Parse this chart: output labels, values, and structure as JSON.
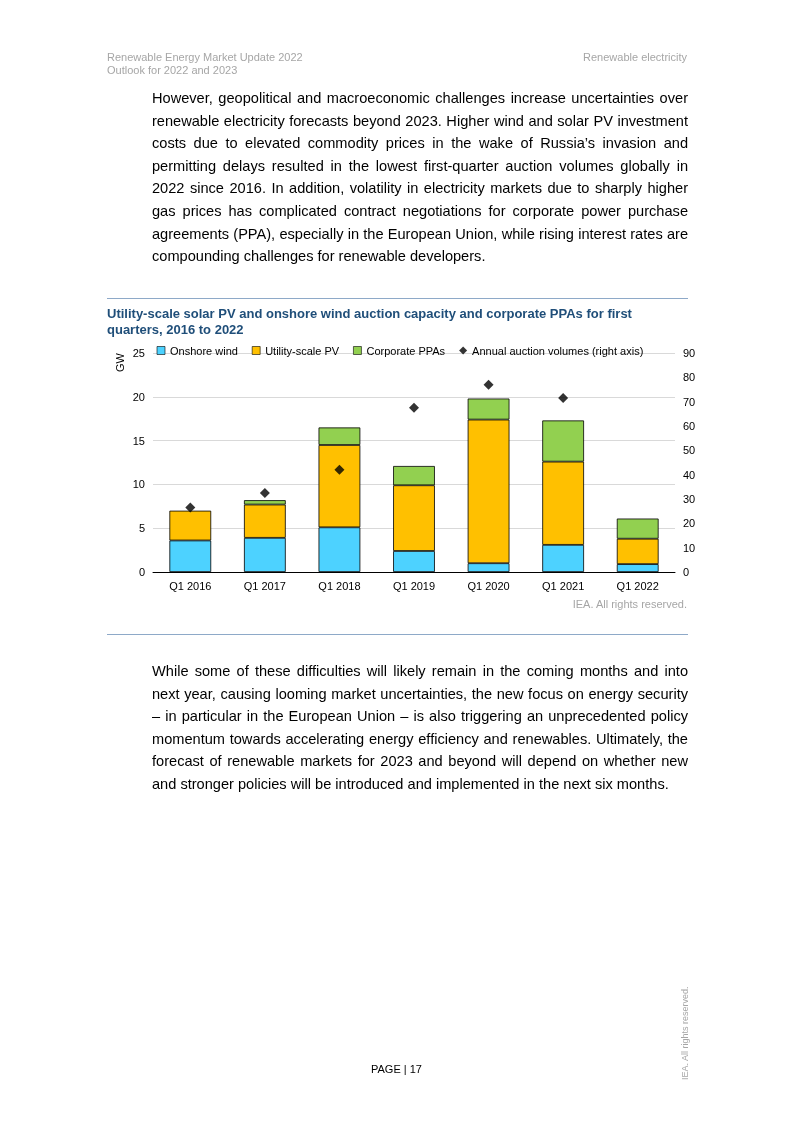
{
  "chart_data": {
    "type": "bar",
    "title": "Utility-scale solar PV and onshore wind auction capacity and corporate PPAs for first quarters, 2016 to 2022",
    "ylabel": "GW",
    "categories": [
      "Q1 2016",
      "Q1 2017",
      "Q1 2018",
      "Q1 2019",
      "Q1 2020",
      "Q1 2021",
      "Q1 2022"
    ],
    "stacked": true,
    "series": [
      {
        "name": "Onshore wind",
        "color": "#4dd2ff",
        "values": [
          3.6,
          3.9,
          5.1,
          2.4,
          1.0,
          3.1,
          0.9
        ]
      },
      {
        "name": "Utility-scale PV",
        "color": "#ffc000",
        "values": [
          3.4,
          3.8,
          9.4,
          7.5,
          16.4,
          9.5,
          2.9
        ]
      },
      {
        "name": "Corporate PPAs",
        "color": "#92d050",
        "values": [
          null,
          0.5,
          2.0,
          2.2,
          2.4,
          4.7,
          2.3
        ]
      },
      {
        "name": "Annual auction volumes (right axis)",
        "type": "scatter",
        "axis": "y2",
        "color": "#000000",
        "values": [
          26.5,
          32.5,
          42,
          67.5,
          77,
          71.5,
          null
        ]
      }
    ],
    "ylim": [
      0,
      25
    ],
    "yticks": [
      0,
      5,
      10,
      15,
      20,
      25
    ],
    "y2lim": [
      0,
      90
    ],
    "y2ticks": [
      0,
      10,
      20,
      30,
      40,
      50,
      60,
      70,
      80,
      90
    ],
    "grid": "y",
    "legend": "top",
    "marker": "diamond",
    "annotations": [
      "Renewable Energy Market Update 2022",
      "Outlook for 2022 and 2023",
      "Renewable electricity",
      "However, geopolitical and macroeconomic challenges increase uncertainties over renewable electricity forecasts beyond 2023. Higher wind and solar PV investment costs due to elevated commodity prices in the wake of Russia’s invasion and permitting delays resulted in the lowest first-quarter auction volumes globally in 2022 since 2016. In addition, volatility in electricity markets due to sharply higher gas prices has complicated contract negotiations for corporate power purchase agreements (PPA), especially in the European Union, while rising interest rates are compounding challenges for renewable developers.",
      "IEA. All rights reserved.",
      "While some of these difficulties will likely remain in the coming months and into next year, causing looming market uncertainties, the new focus on energy security – in particular in the European Union – is also triggering an unprecedented policy momentum towards accelerating energy efficiency and renewables. Ultimately, the forecast of renewable markets for 2023 and beyond will depend on whether new and stronger policies will be introduced and implemented in the next six months.",
      "PAGE | 17",
      "IEA. All rights reserved."
    ]
  }
}
